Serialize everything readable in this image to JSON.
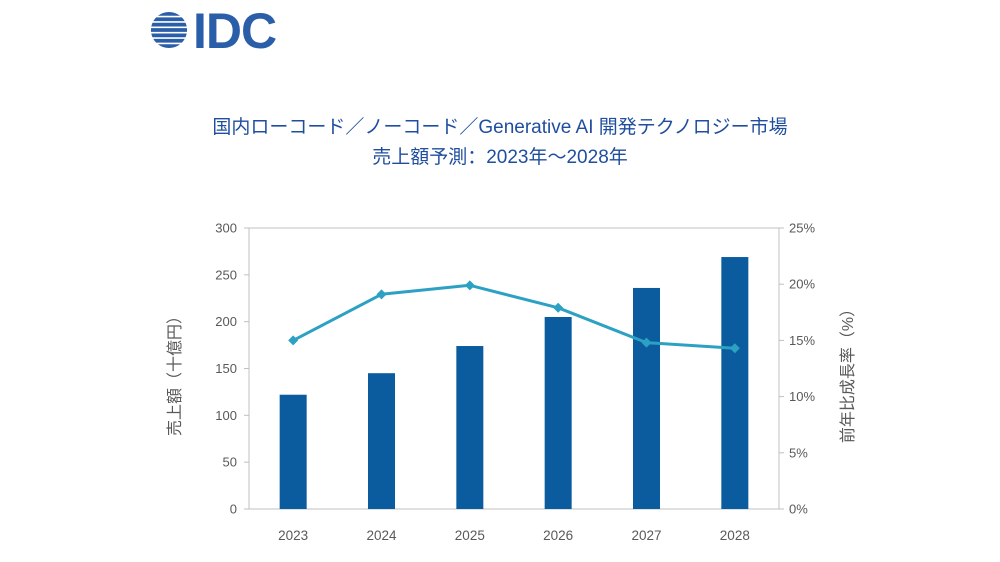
{
  "logo": {
    "text": "IDC",
    "color": "#2b5ea9"
  },
  "colors": {
    "title": "#1f4e9e"
  },
  "chart_data": {
    "type": "bar",
    "title": "国内ローコード／ノーコード／Generative AI 開発テクノロジー市場",
    "subtitle": "売上額予測：2023年～2028年",
    "categories": [
      "2023",
      "2024",
      "2025",
      "2026",
      "2027",
      "2028"
    ],
    "series": [
      {
        "type": "bar",
        "axis": "left",
        "values": [
          122,
          145,
          174,
          205,
          236,
          269
        ],
        "color": "#0b5c9e"
      },
      {
        "type": "line",
        "axis": "right",
        "marker": "diamond",
        "values": [
          15.0,
          19.1,
          19.9,
          17.9,
          14.8,
          14.3
        ],
        "color": "#2da1c4"
      }
    ],
    "ylabel": "売上額（十億円）",
    "ylim": [
      0,
      300
    ],
    "yticks": [
      "0",
      "50",
      "100",
      "150",
      "200",
      "250",
      "300"
    ],
    "y2label": "前年比成長率（%）",
    "y2lim": [
      0,
      25
    ],
    "y2ticks": [
      "0%",
      "5%",
      "10%",
      "15%",
      "20%",
      "25%"
    ],
    "grid": false,
    "legend": "none",
    "colors": {
      "axis_text": "#595959",
      "frame": "#c0c0c0"
    }
  }
}
